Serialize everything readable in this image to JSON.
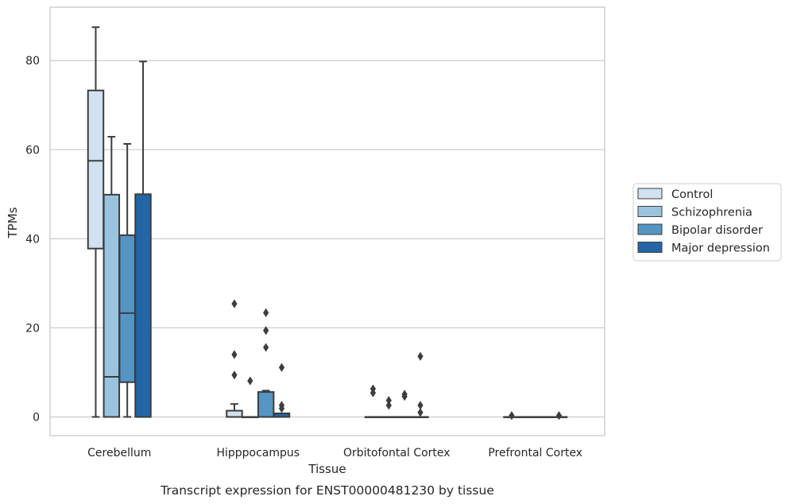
{
  "caption": "Transcript expression for ENST00000481230 by tissue",
  "chart_data": {
    "type": "box",
    "xlabel": "Tissue",
    "ylabel": "TPMs",
    "ylim": [
      -4.2,
      92
    ],
    "yticks": [
      0,
      20,
      40,
      60,
      80
    ],
    "grid": "horizontal",
    "legend_position": "right",
    "categories": [
      "Cerebellum",
      "Hipppocampus",
      "Orbitofontal Cortex",
      "Prefrontal Cortex"
    ],
    "series": [
      {
        "name": "Control",
        "color": "#d1e1f1",
        "boxes": [
          {
            "min": 0,
            "q1": 37.8,
            "median": 57.5,
            "q3": 73.3,
            "max": 87.5,
            "outliers": []
          },
          {
            "min": 0,
            "q1": 0,
            "median": 0,
            "q3": 1.4,
            "max": 2.9,
            "outliers": [
              9.4,
              14.0,
              25.4
            ]
          },
          {
            "min": 0,
            "q1": 0,
            "median": 0,
            "q3": 0,
            "max": 0,
            "outliers": [
              5.4,
              6.3
            ]
          },
          {
            "min": 0,
            "q1": 0,
            "median": 0,
            "q3": 0,
            "max": 0,
            "outliers": [
              0.3
            ]
          }
        ]
      },
      {
        "name": "Schizophrenia",
        "color": "#9ac4de",
        "boxes": [
          {
            "min": 0,
            "q1": 0,
            "median": 9.0,
            "q3": 49.9,
            "max": 62.9,
            "outliers": []
          },
          {
            "min": 0,
            "q1": 0,
            "median": 0,
            "q3": 0,
            "max": 0,
            "outliers": [
              8.1
            ]
          },
          {
            "min": 0,
            "q1": 0,
            "median": 0,
            "q3": 0,
            "max": 0,
            "outliers": [
              2.6,
              3.7
            ]
          },
          {
            "min": 0,
            "q1": 0,
            "median": 0,
            "q3": 0,
            "max": 0,
            "outliers": []
          }
        ]
      },
      {
        "name": "Bipolar disorder",
        "color": "#5495c3",
        "boxes": [
          {
            "min": 0,
            "q1": 7.8,
            "median": 23.3,
            "q3": 40.8,
            "max": 61.3,
            "outliers": []
          },
          {
            "min": 0,
            "q1": 0,
            "median": 0,
            "q3": 5.6,
            "max": 5.9,
            "outliers": [
              15.6,
              19.4,
              23.4
            ]
          },
          {
            "min": 0,
            "q1": 0,
            "median": 0,
            "q3": 0,
            "max": 0,
            "outliers": [
              4.6,
              5.1
            ]
          },
          {
            "min": 0,
            "q1": 0,
            "median": 0,
            "q3": 0,
            "max": 0,
            "outliers": []
          }
        ]
      },
      {
        "name": "Major depression",
        "color": "#2465a6",
        "boxes": [
          {
            "min": 0,
            "q1": 0,
            "median": 0,
            "q3": 50.0,
            "max": 79.8,
            "outliers": []
          },
          {
            "min": 0,
            "q1": 0,
            "median": 0,
            "q3": 0.8,
            "max": 0.8,
            "outliers": [
              1.9,
              2.6,
              11.1
            ]
          },
          {
            "min": 0,
            "q1": 0,
            "median": 0,
            "q3": 0,
            "max": 0,
            "outliers": [
              1.0,
              2.6,
              13.6
            ]
          },
          {
            "min": 0,
            "q1": 0,
            "median": 0,
            "q3": 0,
            "max": 0,
            "outliers": [
              0.3
            ]
          }
        ]
      }
    ]
  }
}
